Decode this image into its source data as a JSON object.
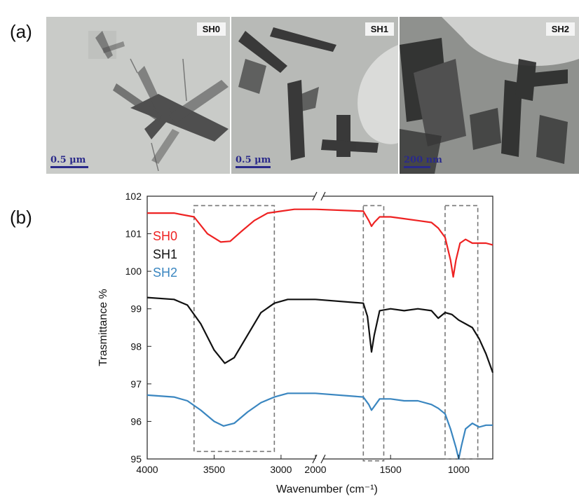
{
  "panels": {
    "a_label": "(a)",
    "b_label": "(b)"
  },
  "tem_images": [
    {
      "tag": "SH0",
      "scale_label": "0.5 µm"
    },
    {
      "tag": "SH1",
      "scale_label": "0.5 µm"
    },
    {
      "tag": "SH2",
      "scale_label": "200 nm"
    }
  ],
  "chart_data": {
    "type": "line",
    "title": "",
    "xlabel": "Wavenumber (cm⁻¹)",
    "ylabel": "Trasmittance %",
    "xlim": [
      4000,
      750
    ],
    "x_break": [
      2000,
      2000
    ],
    "ylim": [
      95,
      102
    ],
    "x_ticks": [
      4000,
      3500,
      3000,
      2000,
      1500,
      1000
    ],
    "y_ticks": [
      95,
      96,
      97,
      98,
      99,
      100,
      101,
      102
    ],
    "legend_position": "left",
    "series": [
      {
        "name": "SH0",
        "color": "#ee2222",
        "points": [
          [
            4000,
            101.55
          ],
          [
            3800,
            101.55
          ],
          [
            3650,
            101.45
          ],
          [
            3550,
            101.0
          ],
          [
            3450,
            100.78
          ],
          [
            3380,
            100.8
          ],
          [
            3300,
            101.05
          ],
          [
            3200,
            101.35
          ],
          [
            3100,
            101.55
          ],
          [
            3000,
            101.6
          ],
          [
            2900,
            101.65
          ],
          [
            2100,
            101.65
          ],
          [
            2000,
            101.65
          ],
          [
            1700,
            101.6
          ],
          [
            1660,
            101.35
          ],
          [
            1640,
            101.2
          ],
          [
            1620,
            101.3
          ],
          [
            1580,
            101.45
          ],
          [
            1500,
            101.45
          ],
          [
            1400,
            101.4
          ],
          [
            1300,
            101.35
          ],
          [
            1200,
            101.3
          ],
          [
            1150,
            101.15
          ],
          [
            1100,
            100.9
          ],
          [
            1060,
            100.3
          ],
          [
            1040,
            99.85
          ],
          [
            1020,
            100.3
          ],
          [
            990,
            100.75
          ],
          [
            950,
            100.85
          ],
          [
            900,
            100.75
          ],
          [
            800,
            100.75
          ],
          [
            750,
            100.7
          ]
        ]
      },
      {
        "name": "SH1",
        "color": "#111111",
        "points": [
          [
            4000,
            99.3
          ],
          [
            3800,
            99.25
          ],
          [
            3700,
            99.1
          ],
          [
            3600,
            98.6
          ],
          [
            3500,
            97.9
          ],
          [
            3420,
            97.55
          ],
          [
            3350,
            97.7
          ],
          [
            3250,
            98.3
          ],
          [
            3150,
            98.9
          ],
          [
            3050,
            99.15
          ],
          [
            2950,
            99.25
          ],
          [
            2100,
            99.25
          ],
          [
            2000,
            99.25
          ],
          [
            1700,
            99.15
          ],
          [
            1670,
            98.8
          ],
          [
            1640,
            97.85
          ],
          [
            1620,
            98.3
          ],
          [
            1580,
            98.95
          ],
          [
            1500,
            99.0
          ],
          [
            1400,
            98.95
          ],
          [
            1300,
            99.0
          ],
          [
            1200,
            98.95
          ],
          [
            1150,
            98.75
          ],
          [
            1100,
            98.9
          ],
          [
            1050,
            98.85
          ],
          [
            1000,
            98.7
          ],
          [
            950,
            98.6
          ],
          [
            900,
            98.5
          ],
          [
            850,
            98.2
          ],
          [
            800,
            97.8
          ],
          [
            750,
            97.3
          ]
        ]
      },
      {
        "name": "SH2",
        "color": "#3a86c0",
        "points": [
          [
            4000,
            96.7
          ],
          [
            3800,
            96.65
          ],
          [
            3700,
            96.55
          ],
          [
            3600,
            96.3
          ],
          [
            3500,
            96.0
          ],
          [
            3430,
            95.88
          ],
          [
            3350,
            95.95
          ],
          [
            3250,
            96.25
          ],
          [
            3150,
            96.5
          ],
          [
            3050,
            96.65
          ],
          [
            2950,
            96.75
          ],
          [
            2100,
            96.75
          ],
          [
            2000,
            96.75
          ],
          [
            1700,
            96.65
          ],
          [
            1660,
            96.45
          ],
          [
            1640,
            96.3
          ],
          [
            1620,
            96.4
          ],
          [
            1580,
            96.6
          ],
          [
            1500,
            96.6
          ],
          [
            1400,
            96.55
          ],
          [
            1300,
            96.55
          ],
          [
            1200,
            96.45
          ],
          [
            1150,
            96.35
          ],
          [
            1100,
            96.2
          ],
          [
            1060,
            95.8
          ],
          [
            1020,
            95.3
          ],
          [
            1000,
            95.0
          ],
          [
            980,
            95.35
          ],
          [
            950,
            95.8
          ],
          [
            900,
            95.95
          ],
          [
            850,
            95.85
          ],
          [
            800,
            95.9
          ],
          [
            750,
            95.9
          ]
        ]
      }
    ],
    "highlight_regions": [
      [
        3650,
        3050
      ],
      [
        1700,
        1550
      ],
      [
        1100,
        860
      ]
    ]
  }
}
